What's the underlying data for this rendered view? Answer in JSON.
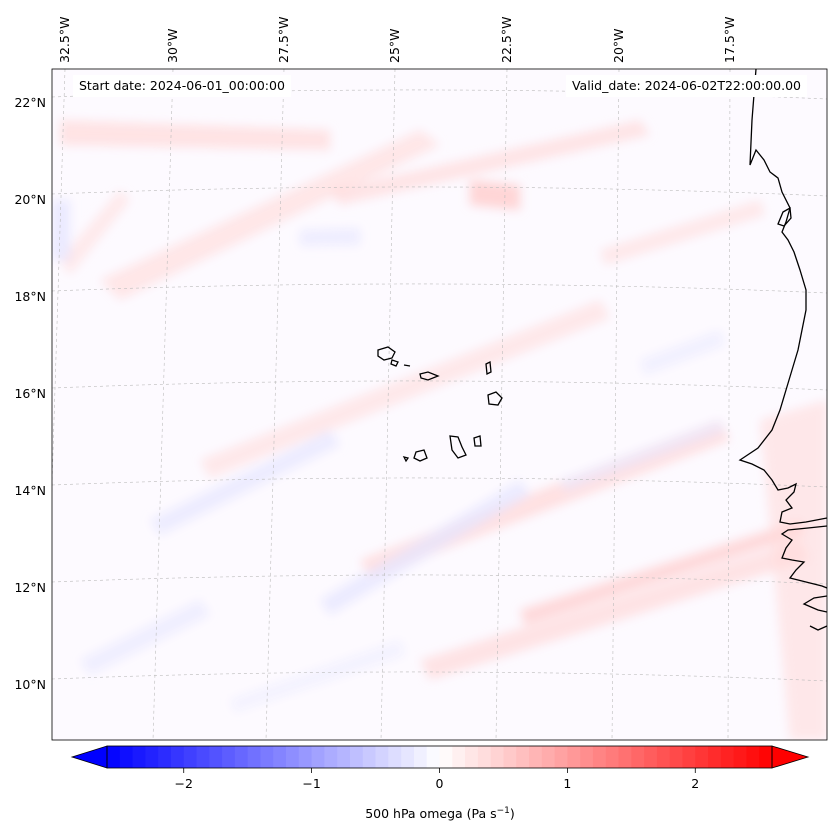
{
  "header": {
    "start_date": "Start date: 2024-06-01_00:00:00",
    "valid_date": "Valid_date: 2024-06-02T22:00:00.00"
  },
  "map": {
    "lon_labels": [
      "32.5°W",
      "30°W",
      "27.5°W",
      "25°W",
      "22.5°W",
      "20°W",
      "17.5°W"
    ],
    "lat_labels": [
      "22°N",
      "20°N",
      "18°N",
      "16°N",
      "14°N",
      "12°N",
      "10°N"
    ],
    "field": "500 hPa omega",
    "colormap": "bwr",
    "colors": {
      "negative": "#0000ff",
      "zero": "#ffffff",
      "positive": "#ff0000"
    }
  },
  "colorbar": {
    "ticks": [
      "−2",
      "−1",
      "0",
      "1",
      "2"
    ],
    "tick_values": [
      -2,
      -1,
      0,
      1,
      2
    ],
    "range": [
      -2.6,
      2.6
    ],
    "label": "500 hPa omega (Pa s",
    "label_exp": "−1",
    "label_close": ")"
  }
}
